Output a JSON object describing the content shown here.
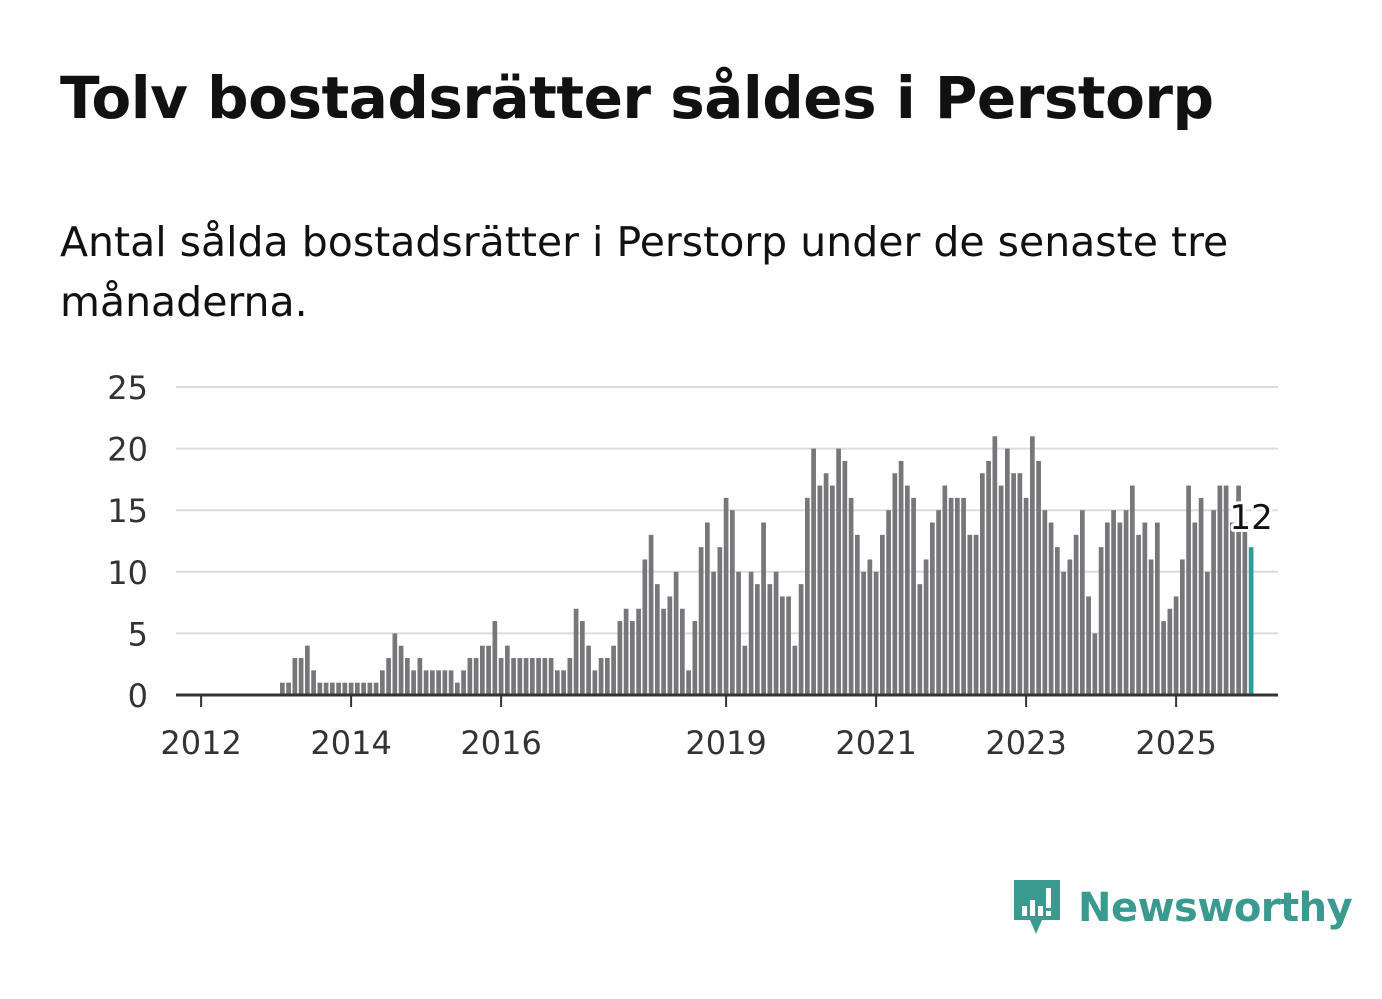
{
  "header": {
    "title": "Tolv bostadsrätter såldes i Perstorp",
    "subtitle": "Antal sålda bostadsrätter i Perstorp under de senaste tre månaderna."
  },
  "brand": {
    "name": "Newsworthy",
    "color": "#3a9a8f",
    "icon": "newsworthy-logo-icon"
  },
  "colors": {
    "bar": "#77767b",
    "highlight": "#2b9c97",
    "grid": "#dcdcdc",
    "axis": "#333333"
  },
  "chart_data": {
    "type": "bar",
    "x_start": "2011-10",
    "x_unit": "month",
    "ylim": [
      0,
      25
    ],
    "yticks": [
      0,
      5,
      10,
      15,
      20,
      25
    ],
    "xtick_labels": [
      "2012",
      "2014",
      "2016",
      "2019",
      "2021",
      "2023",
      "2025"
    ],
    "grid": true,
    "highlight_last": true,
    "last_label": "12",
    "values": [
      0,
      0,
      0,
      0,
      0,
      0,
      0,
      0,
      0,
      0,
      0,
      0,
      0,
      0,
      0,
      0,
      1,
      1,
      3,
      3,
      4,
      2,
      1,
      1,
      1,
      1,
      1,
      1,
      1,
      1,
      1,
      1,
      2,
      3,
      5,
      4,
      3,
      2,
      3,
      2,
      2,
      2,
      2,
      2,
      1,
      2,
      3,
      3,
      4,
      4,
      6,
      3,
      4,
      3,
      3,
      3,
      3,
      3,
      3,
      3,
      2,
      2,
      3,
      7,
      6,
      4,
      2,
      3,
      3,
      4,
      6,
      7,
      6,
      7,
      11,
      13,
      9,
      7,
      8,
      10,
      7,
      2,
      6,
      12,
      14,
      10,
      12,
      16,
      15,
      10,
      4,
      10,
      9,
      14,
      9,
      10,
      8,
      8,
      4,
      9,
      16,
      20,
      17,
      18,
      17,
      20,
      19,
      16,
      13,
      10,
      11,
      10,
      13,
      15,
      18,
      19,
      17,
      16,
      9,
      11,
      14,
      15,
      17,
      16,
      16,
      16,
      13,
      13,
      18,
      19,
      21,
      17,
      20,
      18,
      18,
      16,
      21,
      19,
      15,
      14,
      12,
      10,
      11,
      13,
      15,
      8,
      5,
      12,
      14,
      15,
      14,
      15,
      17,
      13,
      14,
      11,
      14,
      6,
      7,
      8,
      11,
      17,
      14,
      16,
      10,
      15,
      17,
      17,
      14,
      17,
      14,
      12
    ]
  }
}
